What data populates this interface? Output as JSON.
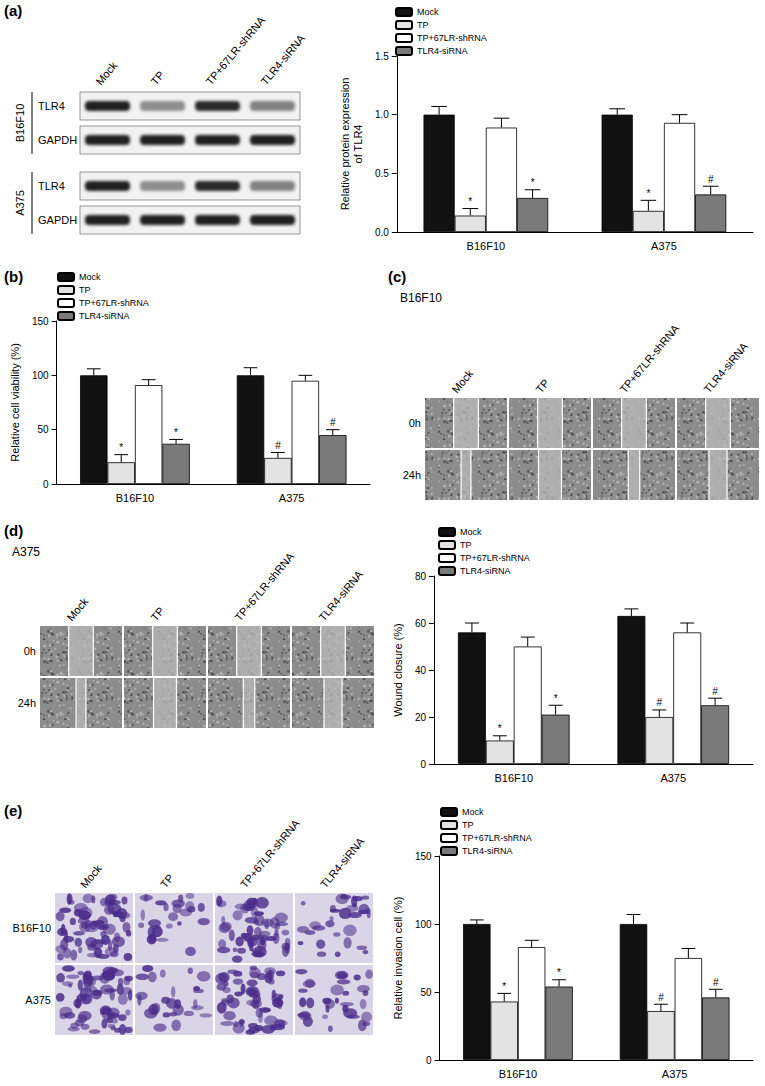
{
  "panels": {
    "a": {
      "label": "(a)",
      "lanes": [
        "Mock",
        "TP",
        "TP+67LR-shRNA",
        "TLR4-siRNA"
      ],
      "cell_lines": [
        "B16F10",
        "A375"
      ],
      "proteins": [
        "TLR4",
        "GAPDH"
      ]
    },
    "b": {
      "label": "(b)"
    },
    "c": {
      "label": "(c)",
      "cell_line": "B16F10",
      "lanes": [
        "Mock",
        "TP",
        "TP+67LR-shRNA",
        "TLR4-siRNA"
      ],
      "times": [
        "0h",
        "24h"
      ]
    },
    "d": {
      "label": "(d)",
      "cell_line": "A375",
      "lanes": [
        "Mock",
        "TP",
        "TP+67LR-shRNA",
        "TLR4-siRNA"
      ],
      "times": [
        "0h",
        "24h"
      ]
    },
    "e": {
      "label": "(e)",
      "lanes": [
        "Mock",
        "TP",
        "TP+67LR-shRNA",
        "TLR4-siRNA"
      ],
      "cell_lines": [
        "B16F10",
        "A375"
      ]
    }
  },
  "chart_data": [
    {
      "type": "bar",
      "ylabel": "Relative protein expression\nof TLR4",
      "categories": [
        "B16F10",
        "A375"
      ],
      "ylim": [
        0,
        1.5
      ],
      "yticks": [
        {
          "value": 0,
          "label": "0.0"
        },
        {
          "value": 0.5,
          "label": "0.5"
        },
        {
          "value": 1,
          "label": "1.0"
        },
        {
          "value": 1.5,
          "label": "1.5"
        }
      ],
      "grid": false,
      "legend": "top-left",
      "series": [
        {
          "name": "Mock",
          "color": "#111111",
          "values": [
            1.0,
            1.0
          ],
          "errors": [
            0.07,
            0.05
          ]
        },
        {
          "name": "TP",
          "color": "#e3e3e3",
          "values": [
            0.14,
            0.18
          ],
          "errors": [
            0.06,
            0.09
          ],
          "marks": [
            "*",
            "*"
          ]
        },
        {
          "name": "TP+67LR-shRNA",
          "color": "#ffffff",
          "values": [
            0.89,
            0.93
          ],
          "errors": [
            0.08,
            0.07
          ]
        },
        {
          "name": "TLR4-siRNA",
          "color": "#7a7a7a",
          "values": [
            0.29,
            0.32
          ],
          "errors": [
            0.07,
            0.07
          ],
          "marks": [
            "*",
            "#"
          ]
        }
      ]
    },
    {
      "type": "bar",
      "ylabel": "Relative cell viability (%)",
      "categories": [
        "B16F10",
        "A375"
      ],
      "ylim": [
        0,
        150
      ],
      "yticks": [
        0,
        50,
        100,
        150
      ],
      "grid": false,
      "legend": "top-left",
      "series": [
        {
          "name": "Mock",
          "color": "#111111",
          "values": [
            100,
            100
          ],
          "errors": [
            6,
            7
          ]
        },
        {
          "name": "TP",
          "color": "#e3e3e3",
          "values": [
            20,
            24
          ],
          "errors": [
            7,
            5
          ],
          "marks": [
            "*",
            "#"
          ]
        },
        {
          "name": "TP+67LR-shRNA",
          "color": "#ffffff",
          "values": [
            91,
            95
          ],
          "errors": [
            5,
            5
          ]
        },
        {
          "name": "TLR4-siRNA",
          "color": "#7a7a7a",
          "values": [
            37,
            45
          ],
          "errors": [
            4,
            5
          ],
          "marks": [
            "*",
            "#"
          ]
        }
      ]
    },
    {
      "type": "bar",
      "ylabel": "Wound closure (%)",
      "categories": [
        "B16F10",
        "A375"
      ],
      "ylim": [
        0,
        80
      ],
      "yticks": [
        0,
        20,
        40,
        60,
        80
      ],
      "grid": false,
      "legend": "top-left",
      "series": [
        {
          "name": "Mock",
          "color": "#111111",
          "values": [
            56,
            63
          ],
          "errors": [
            4,
            3
          ]
        },
        {
          "name": "TP",
          "color": "#e3e3e3",
          "values": [
            10,
            20
          ],
          "errors": [
            2,
            3
          ],
          "marks": [
            "*",
            "#"
          ]
        },
        {
          "name": "TP+67LR-shRNA",
          "color": "#ffffff",
          "values": [
            50,
            56
          ],
          "errors": [
            4,
            4
          ]
        },
        {
          "name": "TLR4-siRNA",
          "color": "#7a7a7a",
          "values": [
            21,
            25
          ],
          "errors": [
            4,
            3
          ],
          "marks": [
            "*",
            "#"
          ]
        }
      ]
    },
    {
      "type": "bar",
      "ylabel": "Relative invasion cell (%)",
      "categories": [
        "B16F10",
        "A375"
      ],
      "ylim": [
        0,
        150
      ],
      "yticks": [
        0,
        50,
        100,
        150
      ],
      "grid": false,
      "legend": "top-left",
      "series": [
        {
          "name": "Mock",
          "color": "#111111",
          "values": [
            100,
            100
          ],
          "errors": [
            3,
            7
          ]
        },
        {
          "name": "TP",
          "color": "#e3e3e3",
          "values": [
            43,
            36
          ],
          "errors": [
            6,
            5
          ],
          "marks": [
            "*",
            "#"
          ]
        },
        {
          "name": "TP+67LR-shRNA",
          "color": "#ffffff",
          "values": [
            83,
            75
          ],
          "errors": [
            5,
            7
          ]
        },
        {
          "name": "TLR4-siRNA",
          "color": "#7a7a7a",
          "values": [
            54,
            46
          ],
          "errors": [
            5,
            6
          ],
          "marks": [
            "*",
            "#"
          ]
        }
      ]
    }
  ]
}
